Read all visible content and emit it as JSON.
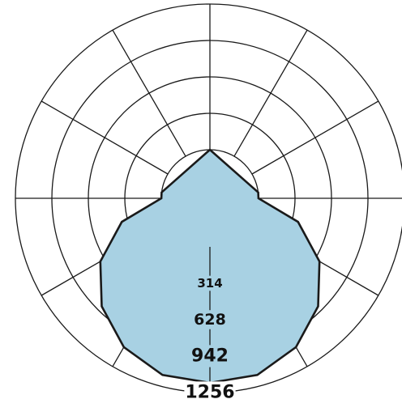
{
  "chart_data": {
    "type": "polar",
    "title": "",
    "radial_ticks": [
      314,
      628,
      942,
      1256
    ],
    "radial_labels": [
      "314",
      "628",
      "942",
      "1256"
    ],
    "radial_max": 1256,
    "angular_spokes": 12,
    "inner_hub_value": 193,
    "grid": true,
    "series": [
      {
        "values_deg": [
          {
            "angle": 0,
            "r": 1256
          },
          {
            "angle": 15,
            "r": 1245
          },
          {
            "angle": 30,
            "r": 1170
          },
          {
            "angle": 45,
            "r": 1040
          },
          {
            "angle": 60,
            "r": 860
          },
          {
            "angle": 75,
            "r": 620
          },
          {
            "angle": 90,
            "r": 330
          },
          {
            "angle": 97,
            "r": 193
          },
          {
            "angle": 180,
            "r": 193
          }
        ],
        "symmetric": true,
        "fill": "#a8d1e3",
        "stroke": "#1a1a1a"
      }
    ]
  }
}
